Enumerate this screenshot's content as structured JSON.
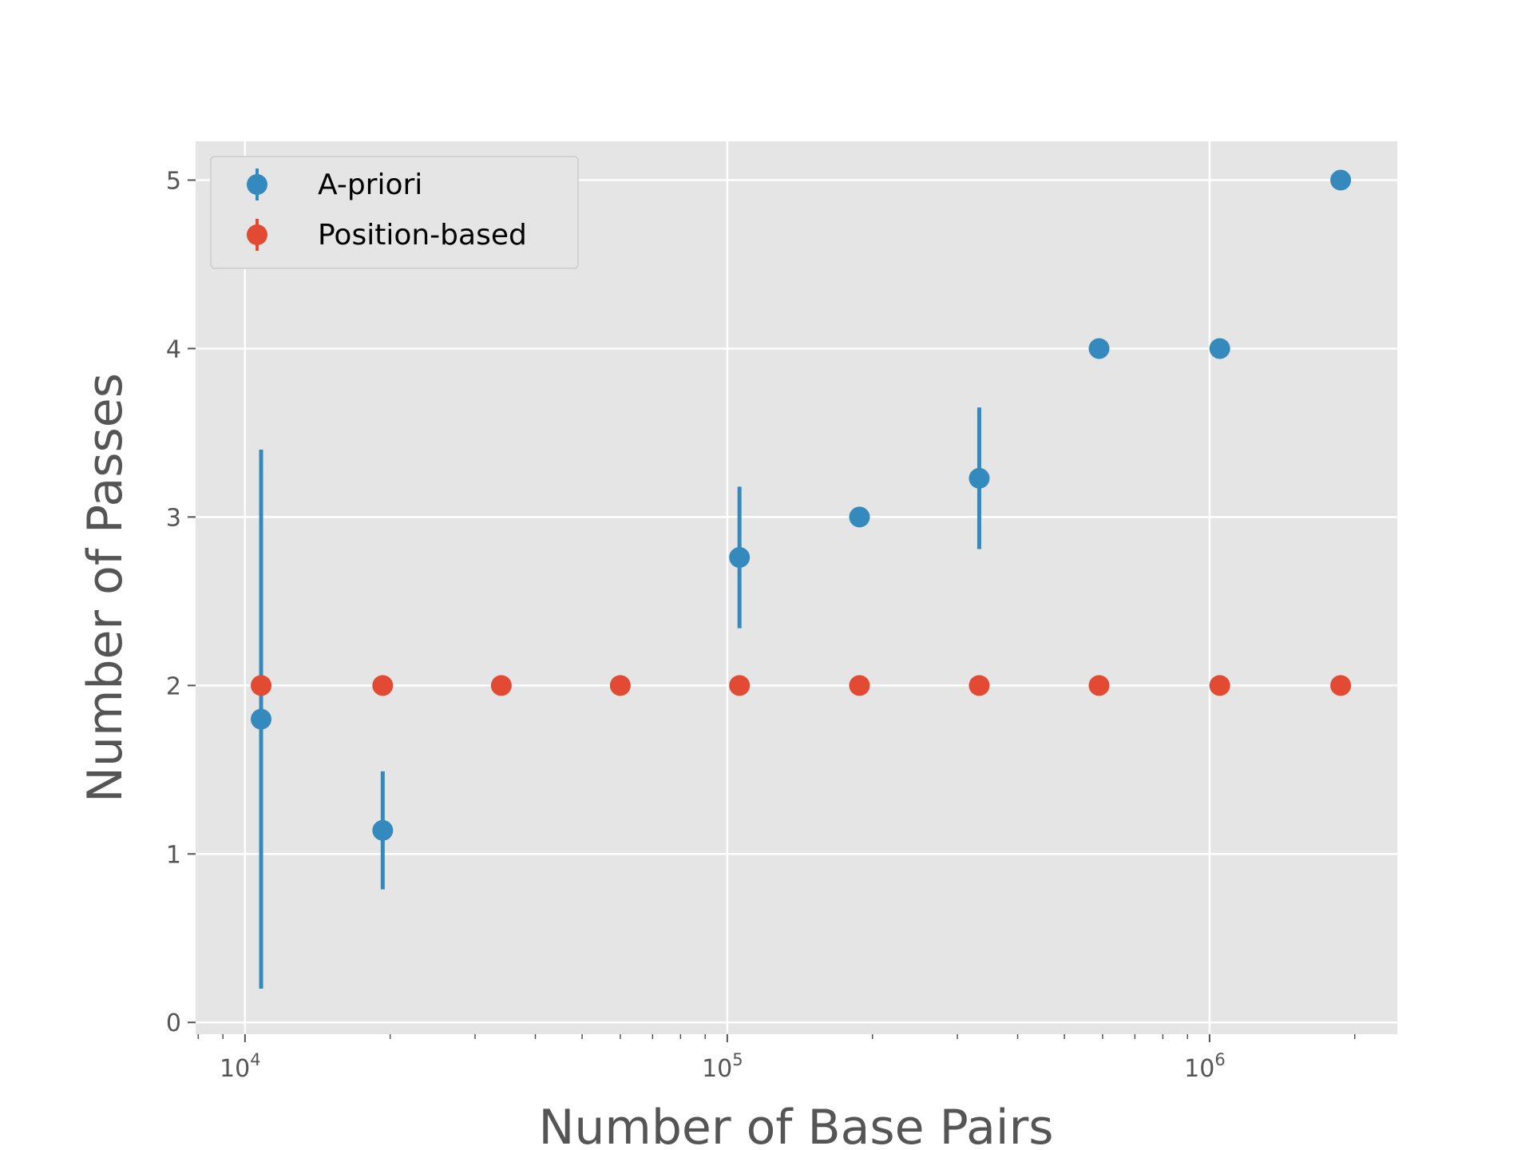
{
  "chart_data": {
    "type": "scatter",
    "title": "",
    "xlabel": "Number of Base Pairs",
    "ylabel": "Number of Passes",
    "xscale": "log",
    "xlim": [
      7900,
      2450000
    ],
    "ylim": [
      -0.07,
      5.23
    ],
    "x_ticks": [
      {
        "value": 10000,
        "base": "10",
        "exp": "4"
      },
      {
        "value": 100000,
        "base": "10",
        "exp": "5"
      },
      {
        "value": 1000000,
        "base": "10",
        "exp": "6"
      }
    ],
    "y_ticks": [
      0,
      1,
      2,
      3,
      4,
      5
    ],
    "grid": true,
    "background": "#e5e5e5",
    "legend_position": "top-left",
    "series": [
      {
        "name": "A-priori",
        "color": "#348abd",
        "x": [
          10800,
          19300,
          106000,
          188000,
          333000,
          590000,
          1050000,
          1870000
        ],
        "y": [
          1.8,
          1.14,
          2.76,
          3.0,
          3.23,
          4.0,
          4.0,
          5.0
        ],
        "yerr": [
          1.6,
          0.35,
          0.42,
          0,
          0.42,
          0,
          0,
          0
        ]
      },
      {
        "name": "Position-based",
        "color": "#e24a33",
        "x": [
          10800,
          19300,
          34000,
          60000,
          106000,
          188000,
          333000,
          590000,
          1050000,
          1870000
        ],
        "y": [
          2,
          2,
          2,
          2,
          2,
          2,
          2,
          2,
          2,
          2
        ],
        "yerr": [
          0,
          0,
          0,
          0,
          0,
          0,
          0,
          0,
          0,
          0
        ]
      }
    ]
  }
}
